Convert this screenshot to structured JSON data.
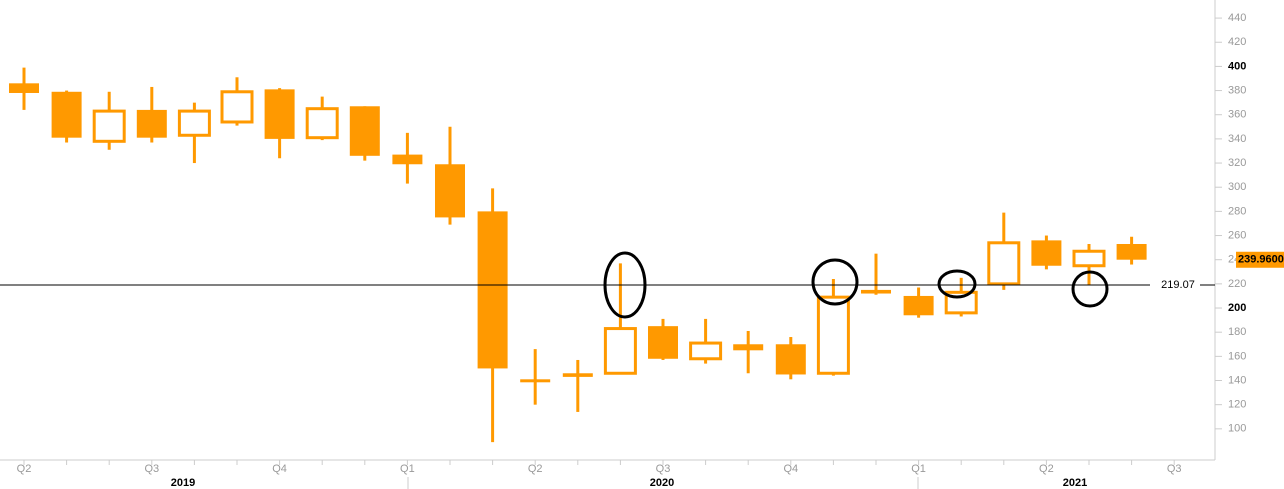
{
  "chart_data": {
    "type": "candlestick",
    "categories": [
      "Q2",
      null,
      null,
      "Q3",
      null,
      null,
      "Q4",
      null,
      null,
      "Q1",
      null,
      null,
      "Q2",
      null,
      null,
      "Q3",
      null,
      null,
      "Q4",
      null,
      null,
      "Q1",
      null,
      null,
      "Q2",
      null,
      null,
      "Q3"
    ],
    "year_labels": [
      "2019",
      "2020",
      "2021"
    ],
    "color": "#ff9900",
    "open": [
      386,
      379,
      338,
      364,
      343,
      354,
      381,
      341,
      367,
      327,
      319,
      280,
      141,
      146,
      146,
      185,
      158,
      170,
      170,
      146,
      215,
      210,
      196,
      220,
      256,
      235,
      253,
      null
    ],
    "high": [
      399,
      380,
      379,
      383,
      370,
      391,
      382,
      375,
      367,
      345,
      350,
      299,
      166,
      157,
      237,
      191,
      191,
      181,
      176,
      224,
      245,
      217,
      225,
      279,
      260,
      253,
      259,
      null
    ],
    "low": [
      364,
      337,
      331,
      337,
      320,
      351,
      324,
      339,
      322,
      303,
      269,
      89,
      120,
      114,
      146,
      157,
      154,
      146,
      141,
      144,
      211,
      192,
      193,
      215,
      232,
      219,
      236,
      null
    ],
    "close": [
      378,
      341,
      363,
      341,
      363,
      379,
      340,
      365,
      326,
      319,
      275,
      150,
      139,
      143,
      183,
      158,
      171,
      165,
      145,
      209,
      212,
      194,
      213,
      254,
      235,
      247,
      240,
      null
    ],
    "ylim": [
      80,
      450
    ],
    "yticks": [
      100,
      120,
      140,
      160,
      180,
      200,
      220,
      240,
      260,
      280,
      300,
      320,
      340,
      360,
      380,
      400,
      420,
      440
    ],
    "ref_line": 219.07,
    "last_price": {
      "value": 239.96,
      "label": "239.9600"
    }
  }
}
